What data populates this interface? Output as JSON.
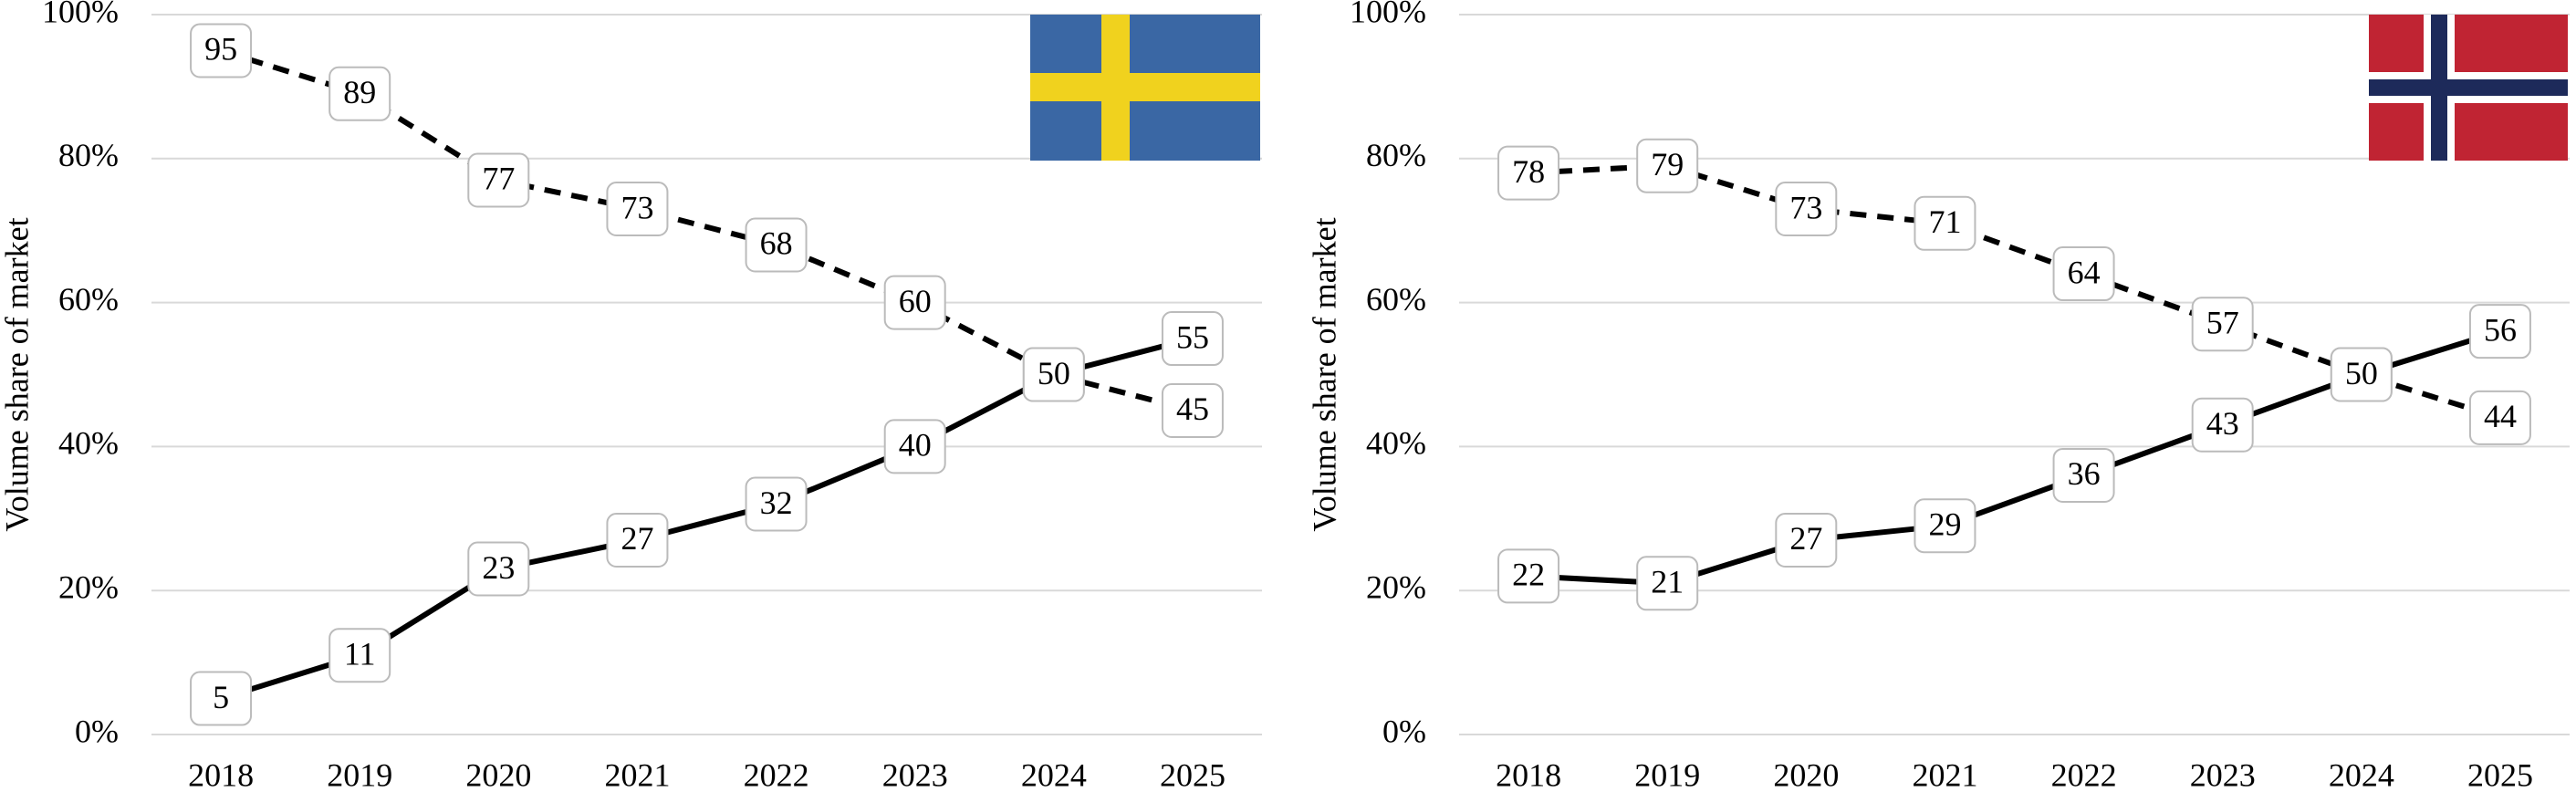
{
  "chart_data": [
    {
      "type": "line",
      "y_label": "Volume share of market",
      "categories": [
        "2018",
        "2019",
        "2020",
        "2021",
        "2022",
        "2023",
        "2024",
        "2025"
      ],
      "series": [
        {
          "color": "#000000",
          "line_style": "solid",
          "values": [
            5,
            11,
            23,
            27,
            32,
            40,
            50,
            55
          ]
        },
        {
          "color": "#000000",
          "line_style": "dashed",
          "values": [
            95,
            89,
            77,
            73,
            68,
            60,
            50,
            45
          ]
        }
      ],
      "ylim": [
        0,
        100
      ],
      "yticks": [
        {
          "value": 0,
          "label": "0%"
        },
        {
          "value": 20,
          "label": "20%"
        },
        {
          "value": 40,
          "label": "40%"
        },
        {
          "value": 60,
          "label": "60%"
        },
        {
          "value": 80,
          "label": "80%"
        },
        {
          "value": 100,
          "label": "100%"
        }
      ],
      "grid": true
    },
    {
      "type": "line",
      "y_label": "Volume share of market",
      "categories": [
        "2018",
        "2019",
        "2020",
        "2021",
        "2022",
        "2023",
        "2024",
        "2025"
      ],
      "series": [
        {
          "color": "#000000",
          "line_style": "solid",
          "values": [
            22,
            21,
            27,
            29,
            36,
            43,
            50,
            56
          ]
        },
        {
          "color": "#000000",
          "line_style": "dashed",
          "values": [
            78,
            79,
            73,
            71,
            64,
            57,
            50,
            44
          ]
        }
      ],
      "ylim": [
        0,
        100
      ],
      "yticks": [
        {
          "value": 0,
          "label": "0%"
        },
        {
          "value": 20,
          "label": "20%"
        },
        {
          "value": 40,
          "label": "40%"
        },
        {
          "value": 60,
          "label": "60%"
        },
        {
          "value": 80,
          "label": "80%"
        },
        {
          "value": 100,
          "label": "100%"
        }
      ],
      "grid": true
    }
  ]
}
